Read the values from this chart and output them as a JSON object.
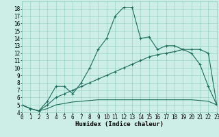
{
  "title": "",
  "xlabel": "Humidex (Indice chaleur)",
  "x_values": [
    0,
    1,
    2,
    3,
    4,
    5,
    6,
    7,
    8,
    9,
    10,
    11,
    12,
    13,
    14,
    15,
    16,
    17,
    18,
    19,
    20,
    21,
    22,
    23
  ],
  "line1": [
    5.0,
    4.5,
    4.2,
    5.5,
    7.5,
    7.5,
    6.5,
    8.0,
    10.0,
    12.5,
    14.0,
    17.0,
    18.2,
    18.2,
    14.0,
    14.2,
    12.5,
    13.0,
    13.0,
    12.5,
    12.0,
    10.5,
    7.5,
    5.0
  ],
  "line2": [
    5.0,
    4.5,
    4.2,
    5.0,
    6.0,
    6.5,
    7.0,
    7.5,
    8.0,
    8.5,
    9.0,
    9.5,
    10.0,
    10.5,
    11.0,
    11.5,
    11.8,
    12.0,
    12.2,
    12.5,
    12.5,
    12.5,
    12.0,
    5.0
  ],
  "line3": [
    5.0,
    4.5,
    4.2,
    4.5,
    5.0,
    5.2,
    5.4,
    5.5,
    5.6,
    5.7,
    5.7,
    5.7,
    5.7,
    5.7,
    5.7,
    5.7,
    5.7,
    5.7,
    5.7,
    5.7,
    5.7,
    5.6,
    5.5,
    5.0
  ],
  "line_color": "#1a6b5a",
  "bg_color": "#cceee6",
  "grid_color": "#88ccbb",
  "ylim": [
    4,
    19
  ],
  "xlim": [
    0,
    23
  ],
  "yticks": [
    4,
    5,
    6,
    7,
    8,
    9,
    10,
    11,
    12,
    13,
    14,
    15,
    16,
    17,
    18
  ],
  "xticks": [
    0,
    1,
    2,
    3,
    4,
    5,
    6,
    7,
    8,
    9,
    10,
    11,
    12,
    13,
    14,
    15,
    16,
    17,
    18,
    19,
    20,
    21,
    22,
    23
  ],
  "tick_fontsize": 5.5,
  "label_fontsize": 6.5
}
